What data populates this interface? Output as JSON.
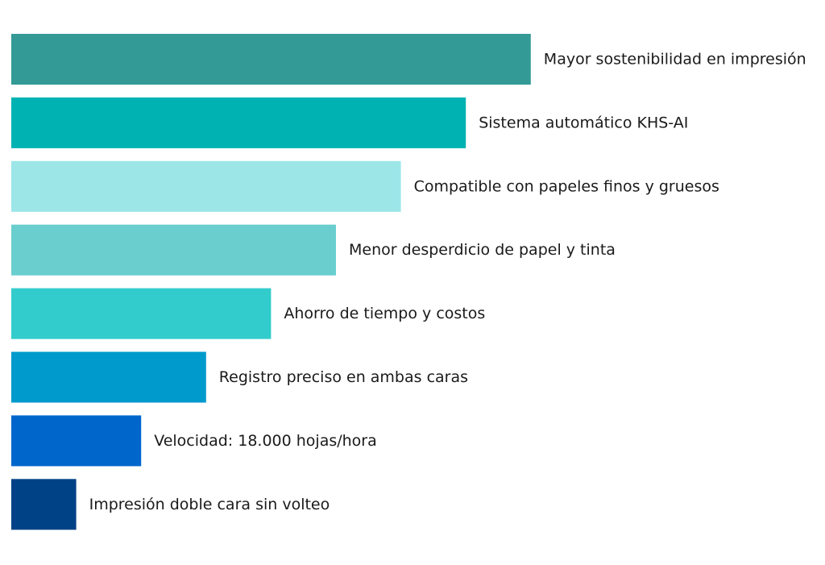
{
  "chart_data": {
    "type": "bar",
    "orientation": "horizontal",
    "title": "",
    "xlabel": "",
    "ylabel": "",
    "grid": false,
    "categories": [
      "Mayor sostenibilidad en impresión",
      "Sistema automático KHS-AI",
      "Compatible con papeles finos y gruesos",
      "Menor desperdicio de papel y tinta",
      "Ahorro de tiempo y costos",
      "Registro preciso en ambas caras",
      "Velocidad: 18.000 hojas/hora",
      "Impresión doble cara sin volteo"
    ],
    "values": [
      8,
      7,
      6,
      5,
      4,
      3,
      2,
      1
    ],
    "xlim": [
      0,
      8
    ],
    "colors": [
      "#339a96",
      "#00b2b2",
      "#9ce6e8",
      "#6acece",
      "#33cccc",
      "#009acc",
      "#0066cc",
      "#004286"
    ]
  }
}
